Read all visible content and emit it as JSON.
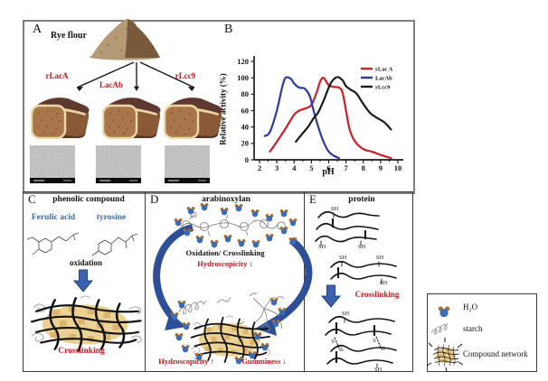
{
  "figure": {
    "panel_a": {
      "letter": "A",
      "flour_label": "Rye flour",
      "treatments": [
        "rLacA",
        "LacAb",
        "rLcc9"
      ]
    },
    "panel_b": {
      "letter": "B"
    },
    "panel_c": {
      "letter": "C",
      "title": "phenolic compound",
      "compound1": "Ferulic acid",
      "compound2": "tyrosine",
      "process": "oxidation",
      "result": "Crosslinking"
    },
    "panel_d": {
      "letter": "D",
      "title": "arabinoxylan",
      "process": "Oxidation/ Crosslinking",
      "effect_top": "Hydroscopicity",
      "effect_top_arrow": "↓",
      "effect_bottom_left": "Hydroscopicity",
      "effect_bottom_left_arrow": "↑",
      "effect_bottom_right": "Gumminess",
      "effect_bottom_right_arrow": "↓"
    },
    "panel_e": {
      "letter": "E",
      "title": "protein",
      "sh_label": "SH",
      "s_label": "S",
      "process": "Crosslinking"
    },
    "legend": {
      "items": [
        {
          "icon": "water-molecule-icon",
          "label": "H₂O"
        },
        {
          "icon": "starch-icon",
          "label": "starch"
        },
        {
          "icon": "compound-network-icon",
          "label": "Compound network"
        }
      ]
    }
  },
  "chart_data": {
    "type": "line",
    "title": "",
    "xlabel": "pH",
    "ylabel": "Relative activity (%)",
    "xlim": [
      2,
      10
    ],
    "ylim": [
      0,
      120
    ],
    "xticks": [
      2,
      3,
      4,
      5,
      6,
      7,
      8,
      9,
      10
    ],
    "yticks": [
      0,
      20,
      40,
      60,
      80,
      100,
      120
    ],
    "grid": false,
    "legend_position": "upper right",
    "series": [
      {
        "name": "rLac A",
        "color": "#cc2027",
        "x": [
          2.6,
          3.0,
          3.5,
          4.0,
          4.3,
          4.7,
          5.0,
          5.3,
          5.5,
          5.7,
          6.0,
          6.3,
          6.6,
          6.8,
          7.0,
          7.2,
          7.5,
          8.0,
          8.5,
          9.0,
          9.6
        ],
        "y": [
          10,
          22,
          38,
          55,
          60,
          63,
          67,
          82,
          95,
          100,
          91,
          89,
          88,
          82,
          60,
          38,
          23,
          13,
          10,
          6,
          2
        ]
      },
      {
        "name": "LacAb",
        "color": "#2b3a9e",
        "x": [
          2.3,
          2.6,
          3.0,
          3.3,
          3.5,
          3.8,
          4.0,
          4.3,
          4.6,
          4.9,
          5.1,
          5.4,
          5.7,
          6.0,
          6.3,
          6.6
        ],
        "y": [
          29,
          34,
          60,
          88,
          100,
          99,
          93,
          88,
          87,
          78,
          62,
          40,
          22,
          10,
          5,
          2
        ]
      },
      {
        "name": "rLcc9",
        "color": "#1a1a1a",
        "x": [
          4.1,
          4.4,
          4.8,
          5.1,
          5.4,
          5.7,
          6.0,
          6.2,
          6.5,
          6.8,
          7.0,
          7.3,
          7.6,
          8.0,
          8.4,
          8.8,
          9.2,
          9.6
        ],
        "y": [
          22,
          30,
          40,
          50,
          58,
          72,
          88,
          96,
          101,
          97,
          90,
          85,
          81,
          68,
          57,
          51,
          46,
          37
        ]
      }
    ]
  }
}
